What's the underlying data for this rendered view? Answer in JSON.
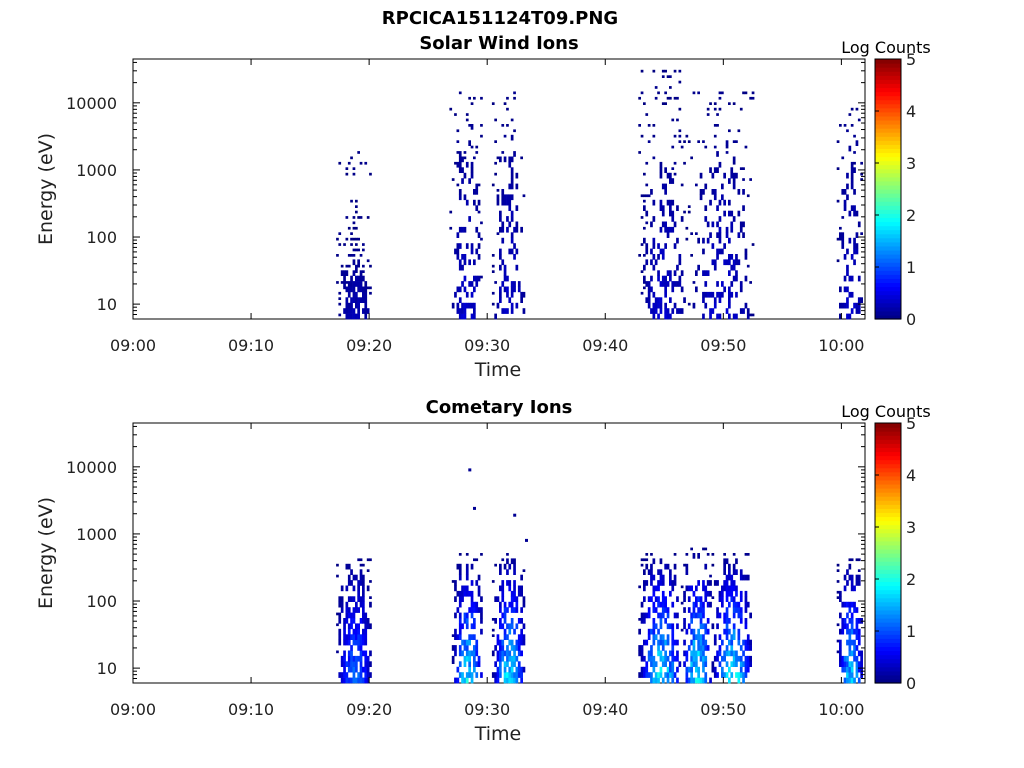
{
  "figure_title": "RPCICA151124T09.PNG",
  "chart_data": [
    {
      "type": "heatmap",
      "title": "Solar Wind Ions",
      "xlabel": "Time",
      "ylabel": "Energy (eV)",
      "x_ticks": [
        "09:00",
        "09:10",
        "09:20",
        "09:30",
        "09:40",
        "09:50",
        "10:00"
      ],
      "y_ticks": [
        "10",
        "100",
        "1000",
        "10000"
      ],
      "y_scale": "log",
      "ylim": [
        6,
        45000
      ],
      "xlim": [
        "09:00",
        "10:02"
      ],
      "colorbar": {
        "label": "Log Counts",
        "ticks": [
          "0",
          "1",
          "2",
          "3",
          "4",
          "5"
        ],
        "range": [
          0,
          5
        ],
        "colormap": "jet"
      },
      "activity": [
        {
          "start_min": 17.2,
          "end_min": 20.2,
          "emin": 6,
          "emax": 100,
          "scatter_max": 2000,
          "peak": 0.3,
          "density": 0.9
        },
        {
          "start_min": 26.8,
          "end_min": 29.6,
          "emin": 6,
          "emax": 12000,
          "scatter_max": 15000,
          "peak": 0.45,
          "density": 0.35
        },
        {
          "start_min": 30.4,
          "end_min": 33.2,
          "emin": 6,
          "emax": 12000,
          "scatter_max": 15000,
          "peak": 0.45,
          "density": 0.35
        },
        {
          "start_min": 42.8,
          "end_min": 47.0,
          "emin": 6,
          "emax": 10000,
          "scatter_max": 30000,
          "peak": 0.45,
          "density": 0.35
        },
        {
          "start_min": 47.0,
          "end_min": 52.6,
          "emin": 6,
          "emax": 10000,
          "scatter_max": 15000,
          "peak": 0.45,
          "density": 0.35
        },
        {
          "start_min": 59.6,
          "end_min": 61.8,
          "emin": 6,
          "emax": 10000,
          "scatter_max": 10000,
          "peak": 0.45,
          "density": 0.35
        }
      ]
    },
    {
      "type": "heatmap",
      "title": "Cometary Ions",
      "xlabel": "Time",
      "ylabel": "Energy (eV)",
      "x_ticks": [
        "09:00",
        "09:10",
        "09:20",
        "09:30",
        "09:40",
        "09:50",
        "10:00"
      ],
      "y_ticks": [
        "10",
        "100",
        "1000",
        "10000"
      ],
      "y_scale": "log",
      "ylim": [
        6,
        45000
      ],
      "xlim": [
        "09:00",
        "10:02"
      ],
      "colorbar": {
        "label": "Log Counts",
        "ticks": [
          "0",
          "1",
          "2",
          "3",
          "4",
          "5"
        ],
        "range": [
          0,
          5
        ],
        "colormap": "jet"
      },
      "activity": [
        {
          "start_min": 17.2,
          "end_min": 20.2,
          "emin": 6,
          "emax": 450,
          "peak": 1.4,
          "density": 0.9
        },
        {
          "start_min": 27.0,
          "end_min": 29.6,
          "emin": 6,
          "emax": 500,
          "peak": 2.1,
          "density": 0.75
        },
        {
          "start_min": 30.4,
          "end_min": 33.2,
          "emin": 6,
          "emax": 550,
          "peak": 2.1,
          "density": 0.75
        },
        {
          "start_min": 42.8,
          "end_min": 46.4,
          "emin": 6,
          "emax": 550,
          "peak": 2.2,
          "density": 0.75
        },
        {
          "start_min": 46.4,
          "end_min": 49.0,
          "emin": 6,
          "emax": 650,
          "peak": 2.3,
          "density": 0.75
        },
        {
          "start_min": 49.0,
          "end_min": 52.4,
          "emin": 6,
          "emax": 550,
          "peak": 2.2,
          "density": 0.75
        },
        {
          "start_min": 59.6,
          "end_min": 61.8,
          "emin": 6,
          "emax": 450,
          "peak": 2.0,
          "density": 0.75
        }
      ],
      "outliers": [
        {
          "t_min": 28.4,
          "energy": 9000
        },
        {
          "t_min": 28.8,
          "energy": 2400
        },
        {
          "t_min": 32.2,
          "energy": 1900
        },
        {
          "t_min": 33.2,
          "energy": 800
        }
      ]
    }
  ]
}
